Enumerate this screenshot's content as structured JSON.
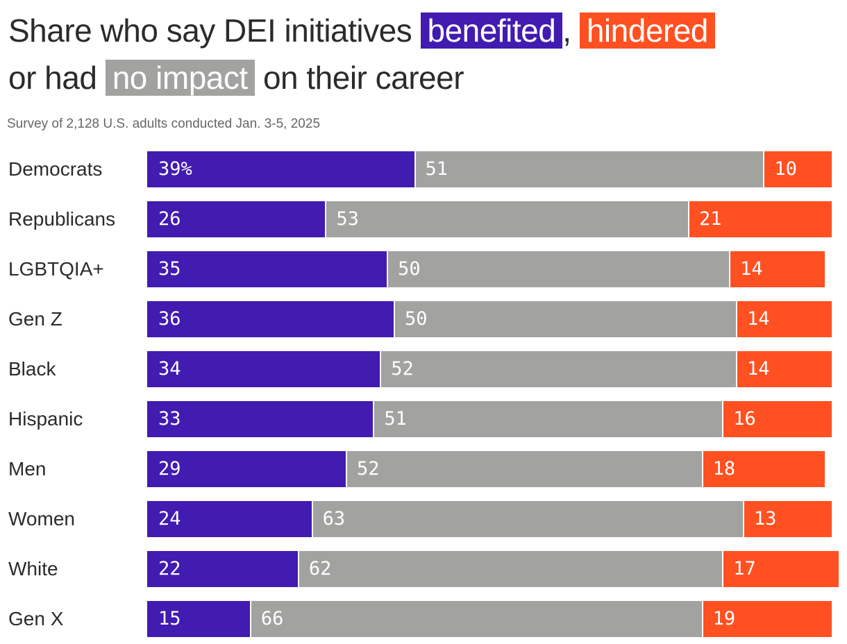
{
  "title": {
    "part1": "Share who say DEI initiatives",
    "benefited": "benefited",
    "part2": ",",
    "hindered": "hindered",
    "part3": "or had",
    "no_impact": "no impact",
    "part4": "on their career"
  },
  "subtitle": "Survey of 2,128 U.S. adults conducted Jan. 3-5, 2025",
  "chart_data": {
    "type": "bar",
    "orientation": "horizontal",
    "stacked": true,
    "categories": [
      "Democrats",
      "Republicans",
      "LGBTQIA+",
      "Gen Z",
      "Black",
      "Hispanic",
      "Men",
      "Women",
      "White",
      "Gen X"
    ],
    "series": [
      {
        "name": "benefited",
        "color": "#421bb0",
        "values": [
          39,
          26,
          35,
          36,
          34,
          33,
          29,
          24,
          22,
          15
        ]
      },
      {
        "name": "no impact",
        "color": "#a2a2a1",
        "values": [
          51,
          53,
          50,
          50,
          52,
          51,
          52,
          63,
          62,
          66
        ]
      },
      {
        "name": "hindered",
        "color": "#ff5022",
        "values": [
          10,
          21,
          14,
          14,
          14,
          16,
          18,
          13,
          17,
          19
        ]
      }
    ],
    "value_suffix_first": "%",
    "xlim": [
      0,
      100
    ],
    "grid": false,
    "legend": "in title"
  }
}
